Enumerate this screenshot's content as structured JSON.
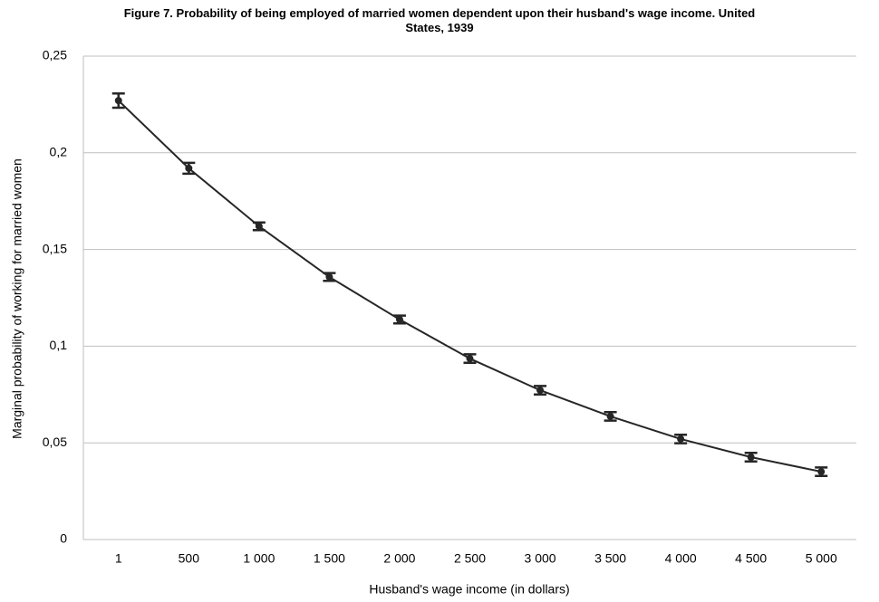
{
  "chart_data": {
    "type": "line",
    "title": "Figure 7. Probability of being employed of married women dependent upon their husband's wage income. United States, 1939",
    "x_label": "Husband's wage income (in dollars)",
    "y_label": "Marginal probability of working for married women",
    "categories": [
      "1",
      "500",
      "1 000",
      "1 500",
      "2 000",
      "2 500",
      "3 000",
      "3 500",
      "4 000",
      "4 500",
      "5 000"
    ],
    "series": [
      {
        "color": "#262626",
        "values": [
          0.227,
          0.192,
          0.162,
          0.1358,
          0.1138,
          0.0936,
          0.0772,
          0.0637,
          0.052,
          0.0426,
          0.0351
        ],
        "errors": [
          0.0037,
          0.0028,
          0.002,
          0.002,
          0.002,
          0.0022,
          0.0022,
          0.0022,
          0.0022,
          0.0022,
          0.0022
        ]
      }
    ],
    "ylim": [
      0,
      0.25
    ],
    "yticks": [
      0,
      {
        "value": 0.05,
        "label": "0,05"
      },
      {
        "value": 0.1,
        "label": "0,1"
      },
      {
        "value": 0.15,
        "label": "0,15"
      },
      {
        "value": 0.2,
        "label": "0,2"
      },
      {
        "value": 0.25,
        "label": "0,25"
      }
    ],
    "grid": true
  }
}
